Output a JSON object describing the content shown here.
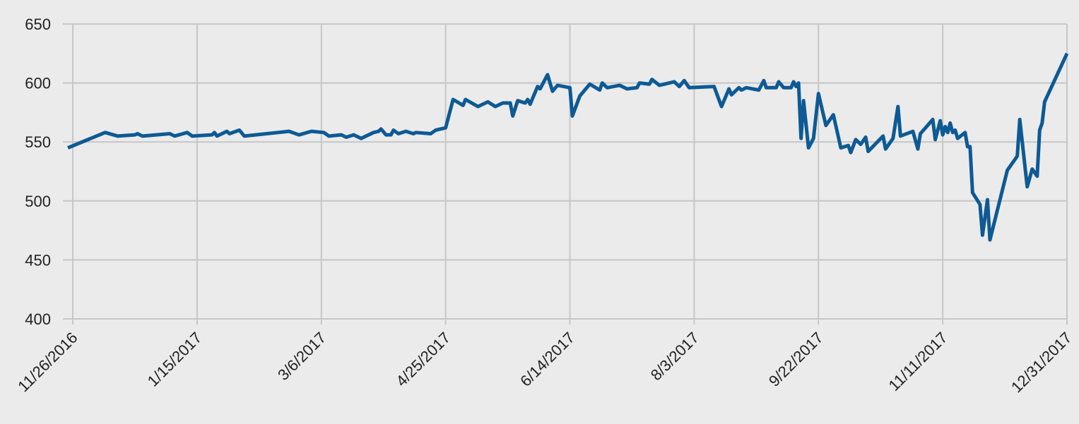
{
  "chart_data": {
    "type": "line",
    "color": "#0d5a94",
    "grid": true,
    "ylim": [
      400,
      650
    ],
    "yticks": [
      400,
      450,
      500,
      550,
      600,
      650
    ],
    "xlim": [
      "11/22/2016",
      "12/31/2017"
    ],
    "xticks": [
      "11/26/2016",
      "1/15/2017",
      "3/6/2017",
      "4/25/2017",
      "6/14/2017",
      "8/3/2017",
      "9/22/2017",
      "11/11/2017",
      "12/31/2017"
    ],
    "x": [
      "11/24/2016",
      "12/9/2016",
      "12/14/2016",
      "12/21/2016",
      "12/22/2016",
      "12/24/2016",
      "1/4/2017",
      "1/6/2017",
      "1/11/2017",
      "1/13/2017",
      "1/21/2017",
      "1/22/2017",
      "1/23/2017",
      "1/27/2017",
      "1/28/2017",
      "2/1/2017",
      "2/3/2017",
      "2/21/2017",
      "2/25/2017",
      "3/2/2017",
      "3/7/2017",
      "3/9/2017",
      "3/14/2017",
      "3/16/2017",
      "3/19/2017",
      "3/22/2017",
      "3/27/2017",
      "3/29/2017",
      "3/30/2017",
      "4/1/2017",
      "4/3/2017",
      "4/4/2017",
      "4/6/2017",
      "4/9/2017",
      "4/12/2017",
      "4/13/2017",
      "4/19/2017",
      "4/21/2017",
      "4/25/2017",
      "4/28/2017",
      "5/2/2017",
      "5/3/2017",
      "5/8/2017",
      "5/12/2017",
      "5/15/2017",
      "5/18/2017",
      "5/21/2017",
      "5/22/2017",
      "5/24/2017",
      "5/27/2017",
      "5/28/2017",
      "5/29/2017",
      "6/1/2017",
      "6/2/2017",
      "6/5/2017",
      "6/7/2017",
      "6/9/2017",
      "6/14/2017",
      "6/15/2017",
      "6/18/2017",
      "6/22/2017",
      "6/26/2017",
      "6/27/2017",
      "6/29/2017",
      "7/4/2017",
      "7/7/2017",
      "7/11/2017",
      "7/12/2017",
      "7/16/2017",
      "7/17/2017",
      "7/20/2017",
      "7/26/2017",
      "7/28/2017",
      "7/30/2017",
      "8/1/2017",
      "8/11/2017",
      "8/14/2017",
      "8/17/2017",
      "8/18/2017",
      "8/21/2017",
      "8/22/2017",
      "8/24/2017",
      "8/29/2017",
      "8/31/2017",
      "9/1/2017",
      "9/5/2017",
      "9/6/2017",
      "9/8/2017",
      "9/11/2017",
      "9/12/2017",
      "9/13/2017",
      "9/14/2017",
      "9/15/2017",
      "9/16/2017",
      "9/18/2017",
      "9/20/2017",
      "9/22/2017",
      "9/25/2017",
      "9/28/2017",
      "10/1/2017",
      "10/4/2017",
      "10/5/2017",
      "10/7/2017",
      "10/9/2017",
      "10/11/2017",
      "10/12/2017",
      "10/18/2017",
      "10/19/2017",
      "10/22/2017",
      "10/24/2017",
      "10/25/2017",
      "10/30/2017",
      "11/1/2017",
      "11/2/2017",
      "11/7/2017",
      "11/8/2017",
      "11/10/2017",
      "11/11/2017",
      "11/12/2017",
      "11/13/2017",
      "11/14/2017",
      "11/15/2017",
      "11/16/2017",
      "11/17/2017",
      "11/20/2017",
      "11/21/2017",
      "11/22/2017",
      "11/23/2017",
      "11/26/2017",
      "11/27/2017",
      "11/29/2017",
      "11/30/2017",
      "12/7/2017",
      "12/11/2017",
      "12/12/2017",
      "12/15/2017",
      "12/17/2017",
      "12/19/2017",
      "12/20/2017",
      "12/21/2017",
      "12/22/2017",
      "12/31/2017"
    ],
    "values": [
      545,
      558,
      555,
      556,
      557,
      555,
      557,
      555,
      558,
      555,
      556,
      558,
      555,
      559,
      557,
      560,
      555,
      559,
      556,
      559,
      558,
      555,
      556,
      554,
      556,
      553,
      558,
      559,
      561,
      556,
      556,
      560,
      557,
      559,
      557,
      558,
      557,
      560,
      562,
      586,
      581,
      586,
      580,
      584,
      580,
      583,
      583,
      572,
      585,
      583,
      586,
      582,
      597,
      595,
      607,
      593,
      598,
      596,
      572,
      589,
      599,
      594,
      600,
      596,
      598,
      595,
      596,
      600,
      599,
      603,
      598,
      601,
      597,
      602,
      596,
      597,
      580,
      595,
      590,
      596,
      594,
      596,
      594,
      602,
      596,
      596,
      601,
      596,
      596,
      601,
      597,
      600,
      553,
      585,
      545,
      553,
      591,
      564,
      573,
      545,
      547,
      541,
      552,
      548,
      554,
      542,
      555,
      544,
      553,
      580,
      555,
      559,
      544,
      557,
      569,
      552,
      568,
      556,
      563,
      558,
      566,
      558,
      560,
      553,
      558,
      546,
      546,
      507,
      497,
      471,
      501,
      467,
      526,
      538,
      569,
      512,
      527,
      521,
      560,
      566,
      584,
      625
    ]
  }
}
